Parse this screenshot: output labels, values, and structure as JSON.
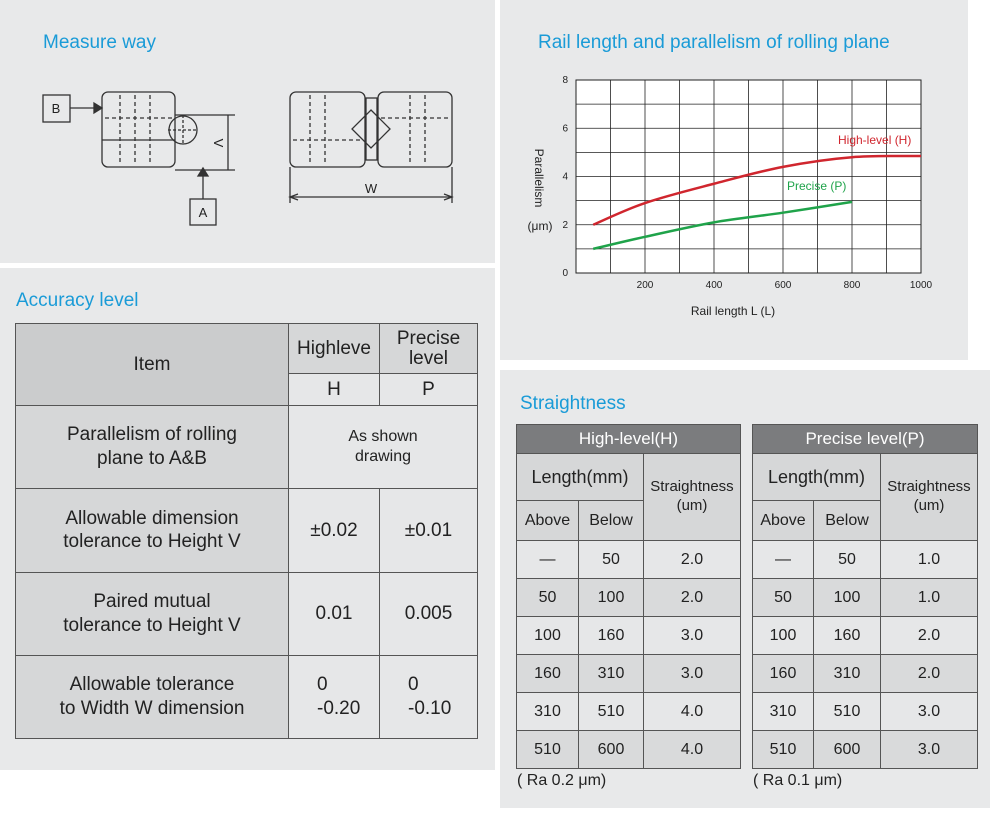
{
  "measure_way": {
    "title": "Measure way",
    "labels": {
      "b": "B",
      "a": "A",
      "v": "V",
      "w": "W"
    }
  },
  "chart_data": {
    "type": "line",
    "title": "Rail length and parallelism of rolling plane",
    "x_label": "Rail length L (L)",
    "y_label": "Parallelism",
    "y_unit": "(μm)",
    "xlim": [
      0,
      1000
    ],
    "xticks": [
      200,
      400,
      600,
      800,
      1000
    ],
    "ylim": [
      0,
      8
    ],
    "yticks": [
      0,
      2,
      4,
      6,
      8
    ],
    "grid": true,
    "series": [
      {
        "name": "High-level (H)",
        "color": "#d0262e",
        "x": [
          50,
          200,
          400,
          600,
          800,
          1000
        ],
        "values": [
          2.0,
          2.9,
          3.7,
          4.4,
          4.8,
          4.85
        ]
      },
      {
        "name": "Precise (P)",
        "color": "#1fa34a",
        "x": [
          50,
          200,
          400,
          600,
          800
        ],
        "values": [
          1.0,
          1.5,
          2.1,
          2.5,
          2.95
        ]
      }
    ]
  },
  "accuracy": {
    "title": "Accuracy level",
    "header": {
      "item": "Item",
      "high": "Highleve",
      "precise": "Precise\nlevel",
      "high_code": "H",
      "precise_code": "P"
    },
    "rows": [
      [
        "Parallelism of rolling\nplane to A&B",
        "As shown\ndrawing"
      ],
      [
        "Allowable dimension\ntolerance to Height V",
        "±0.02",
        "±0.01"
      ],
      [
        "Paired mutual\ntolerance to Height V",
        "0.01",
        "0.005"
      ],
      [
        "Allowable tolerance\nto Width W dimension",
        "0\n-0.20",
        "0\n-0.10"
      ]
    ]
  },
  "straightness": {
    "title": "Straightness",
    "tables": [
      {
        "title": "High-level(H)",
        "length": "Length(mm)",
        "above": "Above",
        "below": "Below",
        "straightness": "Straightness\n(um)",
        "rows": [
          [
            "—",
            "50",
            "2.0"
          ],
          [
            "50",
            "100",
            "2.0"
          ],
          [
            "100",
            "160",
            "3.0"
          ],
          [
            "160",
            "310",
            "3.0"
          ],
          [
            "310",
            "510",
            "4.0"
          ],
          [
            "510",
            "600",
            "4.0"
          ]
        ],
        "note": "( Ra 0.2 μm)"
      },
      {
        "title": "Precise level(P)",
        "length": "Length(mm)",
        "above": "Above",
        "below": "Below",
        "straightness": "Straightness\n(um)",
        "rows": [
          [
            "—",
            "50",
            "1.0"
          ],
          [
            "50",
            "100",
            "1.0"
          ],
          [
            "100",
            "160",
            "2.0"
          ],
          [
            "160",
            "310",
            "2.0"
          ],
          [
            "310",
            "510",
            "3.0"
          ],
          [
            "510",
            "600",
            "3.0"
          ]
        ],
        "note": "( Ra 0.1 μm)"
      }
    ]
  }
}
